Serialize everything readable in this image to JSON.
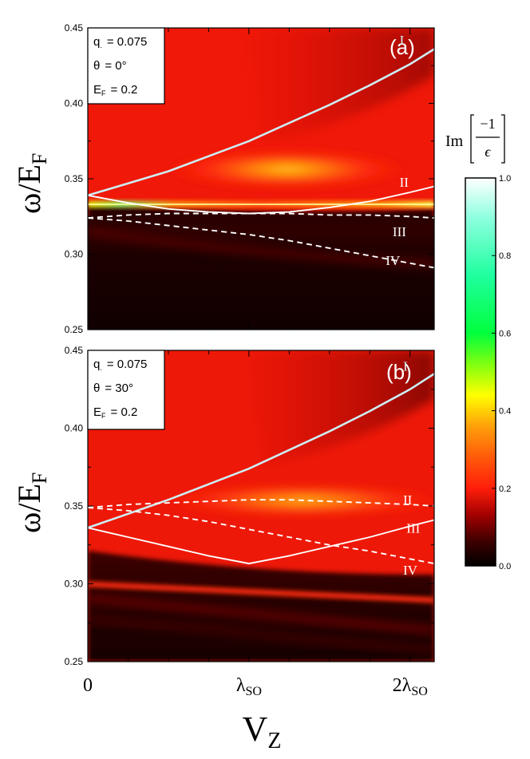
{
  "chart_data": [
    {
      "type": "heatmap",
      "panel_label": "(a)",
      "ylabel": "ω/E_F",
      "xlabel": "",
      "xlim": [
        0,
        2.15
      ],
      "ylim": [
        0.25,
        0.45
      ],
      "y_ticks": [
        "0.25",
        "0.30",
        "0.35",
        "0.40",
        "0.45"
      ],
      "x_ticks": [
        "0",
        "λSO",
        "2λSO"
      ],
      "params": [
        "q = 0.075",
        "θ = 0°",
        "E_F = 0.2"
      ],
      "param_lines": [
        {
          "symbol": "q",
          "sub": ".",
          "value": "= 0.075"
        },
        {
          "symbol": "θ",
          "sub": "",
          "value": "= 0°"
        },
        {
          "symbol": "E",
          "sub": "F",
          "value": "= 0.2"
        }
      ],
      "curves": [
        {
          "name": "I",
          "style": "solid",
          "x": [
            0,
            0.25,
            0.5,
            0.75,
            1.0,
            1.25,
            1.5,
            1.75,
            2.0,
            2.15
          ],
          "y": [
            0.339,
            0.347,
            0.355,
            0.365,
            0.375,
            0.387,
            0.399,
            0.412,
            0.426,
            0.436
          ]
        },
        {
          "name": "II",
          "style": "solid",
          "x": [
            0,
            0.25,
            0.5,
            0.75,
            1.0,
            1.25,
            1.5,
            1.75,
            2.0,
            2.15
          ],
          "y": [
            0.339,
            0.334,
            0.33,
            0.328,
            0.327,
            0.328,
            0.331,
            0.335,
            0.341,
            0.345
          ]
        },
        {
          "name": "III",
          "style": "dashed",
          "x": [
            0,
            0.25,
            0.5,
            0.75,
            1.0,
            1.25,
            1.5,
            1.75,
            2.0,
            2.15
          ],
          "y": [
            0.324,
            0.326,
            0.327,
            0.327,
            0.327,
            0.327,
            0.326,
            0.326,
            0.325,
            0.324
          ]
        },
        {
          "name": "IV",
          "style": "dashed",
          "x": [
            0,
            0.25,
            0.5,
            0.75,
            1.0,
            1.25,
            1.5,
            1.75,
            2.0,
            2.15
          ],
          "y": [
            0.324,
            0.322,
            0.319,
            0.316,
            0.313,
            0.309,
            0.304,
            0.299,
            0.294,
            0.291
          ]
        }
      ],
      "curve_labels": [
        "I",
        "II",
        "III",
        "IV"
      ]
    },
    {
      "type": "heatmap",
      "panel_label": "(b)",
      "ylabel": "ω/E_F",
      "xlabel": "V_Z",
      "xlim": [
        0,
        2.15
      ],
      "ylim": [
        0.25,
        0.45
      ],
      "y_ticks": [
        "0.25",
        "0.30",
        "0.35",
        "0.40",
        "0.45"
      ],
      "x_ticks": [
        "0",
        "λSO",
        "2λSO"
      ],
      "params": [
        "q = 0.075",
        "θ = 30°",
        "E_F = 0.2"
      ],
      "param_lines": [
        {
          "symbol": "q",
          "sub": ".",
          "value": "= 0.075"
        },
        {
          "symbol": "θ",
          "sub": "",
          "value": "= 30°"
        },
        {
          "symbol": "E",
          "sub": "F",
          "value": "= 0.2"
        }
      ],
      "curves": [
        {
          "name": "I",
          "style": "solid",
          "x": [
            0,
            0.25,
            0.5,
            0.75,
            1.0,
            1.25,
            1.5,
            1.75,
            2.0,
            2.15
          ],
          "y": [
            0.336,
            0.345,
            0.354,
            0.364,
            0.374,
            0.386,
            0.398,
            0.411,
            0.425,
            0.435
          ]
        },
        {
          "name": "II",
          "style": "dashed",
          "x": [
            0,
            0.25,
            0.5,
            0.75,
            1.0,
            1.25,
            1.5,
            1.75,
            2.0,
            2.15
          ],
          "y": [
            0.349,
            0.351,
            0.352,
            0.353,
            0.354,
            0.354,
            0.353,
            0.352,
            0.351,
            0.35
          ]
        },
        {
          "name": "III",
          "style": "solid",
          "x": [
            0,
            0.25,
            0.5,
            0.75,
            1.0,
            1.25,
            1.5,
            1.75,
            2.0,
            2.15
          ],
          "y": [
            0.336,
            0.33,
            0.324,
            0.318,
            0.313,
            0.318,
            0.324,
            0.33,
            0.337,
            0.341
          ]
        },
        {
          "name": "IV",
          "style": "dashed",
          "x": [
            0,
            0.25,
            0.5,
            0.75,
            1.0,
            1.25,
            1.5,
            1.75,
            2.0,
            2.15
          ],
          "y": [
            0.349,
            0.347,
            0.344,
            0.34,
            0.335,
            0.33,
            0.325,
            0.321,
            0.316,
            0.313
          ]
        }
      ],
      "curve_labels": [
        "I",
        "II",
        "III",
        "IV"
      ]
    }
  ],
  "colorbar": {
    "label_prefix": "Im",
    "label_numerator": "−1",
    "label_denominator": "ϵ",
    "range": [
      0.0,
      1.0
    ],
    "ticks": [
      "0.0",
      "0.2",
      "0.4",
      "0.6",
      "0.8",
      "1.0"
    ],
    "colormap": [
      "#000000",
      "#5a0000",
      "#c00000",
      "#ff2a0a",
      "#ff8a0a",
      "#ffff00",
      "#00ff3c",
      "#44ffc6",
      "#ffffff"
    ]
  }
}
